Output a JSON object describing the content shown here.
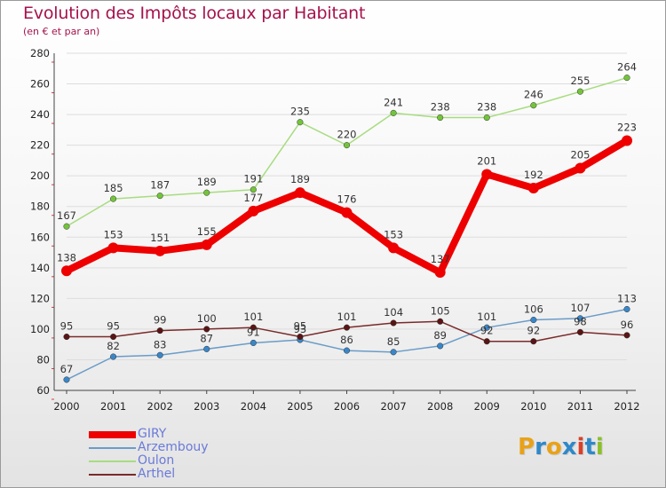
{
  "title": "Evolution des Impôts locaux par Habitant",
  "subtitle": "(en € et par an)",
  "logo": {
    "text": "Proxiti",
    "letters": [
      {
        "char": "P",
        "color": "#e8a21a"
      },
      {
        "char": "r",
        "color": "#2f88c8"
      },
      {
        "char": "o",
        "color": "#e8a21a"
      },
      {
        "char": "x",
        "color": "#2f88c8"
      },
      {
        "char": "i",
        "color": "#d9402a"
      },
      {
        "char": "t",
        "color": "#2f88c8"
      },
      {
        "char": "i",
        "color": "#8bbf2a"
      }
    ]
  },
  "chart_data": {
    "type": "line",
    "title": "Evolution des Impôts locaux par Habitant",
    "subtitle": "(en € et par an)",
    "xlabel": "",
    "ylabel": "",
    "x": [
      "2000",
      "2001",
      "2002",
      "2003",
      "2004",
      "2005",
      "2006",
      "2007",
      "2008",
      "2009",
      "2010",
      "2011",
      "2012"
    ],
    "ylim": [
      60,
      280
    ],
    "yticks": [
      60,
      80,
      100,
      120,
      140,
      160,
      180,
      200,
      220,
      240,
      260,
      280
    ],
    "grid": "horizontal",
    "legend_position": "bottom-left",
    "series": [
      {
        "name": "GIRY",
        "color": "#ee0000",
        "emphasis": "thick",
        "values": [
          138,
          153,
          151,
          155,
          177,
          189,
          176,
          153,
          137,
          201,
          192,
          205,
          223
        ],
        "labels": [
          "138",
          "153",
          "151",
          "155",
          "177",
          "189",
          "176",
          "153",
          "137",
          "201",
          "192",
          "205",
          "223"
        ]
      },
      {
        "name": "Arzembouy",
        "color": "#6a9cc8",
        "marker_color": "#3a86c8",
        "values": [
          67,
          82,
          83,
          87,
          91,
          93,
          86,
          85,
          89,
          101,
          106,
          107,
          113
        ],
        "labels": [
          "67",
          "82",
          "83",
          "87",
          "91",
          "93",
          "86",
          "85",
          "89",
          "101",
          "106",
          "107",
          "113"
        ]
      },
      {
        "name": "Oulon",
        "color": "#a8dc80",
        "marker_color": "#74c43a",
        "values": [
          167,
          185,
          187,
          189,
          191,
          235,
          220,
          241,
          238,
          238,
          246,
          255,
          264
        ],
        "labels": [
          "167",
          "185",
          "187",
          "189",
          "191",
          "235",
          "220",
          "241",
          "238",
          "238",
          "246",
          "255",
          "264"
        ]
      },
      {
        "name": "Arthel",
        "color": "#7a2a2a",
        "marker_color": "#5a1414",
        "values": [
          95,
          95,
          99,
          100,
          101,
          95,
          101,
          104,
          105,
          92,
          92,
          98,
          96
        ],
        "labels": [
          "95",
          "95",
          "99",
          "100",
          "101",
          "95",
          "101",
          "104",
          "105",
          "92",
          "92",
          "98",
          "96"
        ]
      }
    ]
  }
}
